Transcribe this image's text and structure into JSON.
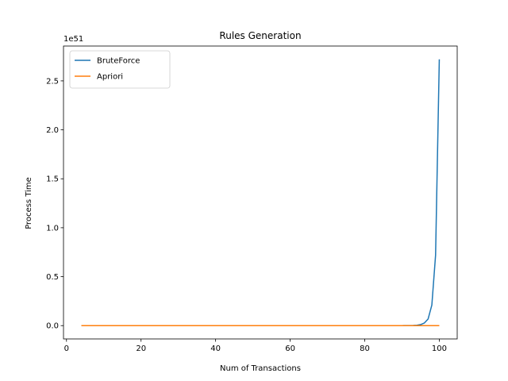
{
  "chart_data": {
    "type": "line",
    "title": "Rules Generation",
    "xlabel": "Num of Transactions",
    "ylabel": "Process Time",
    "offset_text": "1e51",
    "xlim": [
      -0.8,
      104.8
    ],
    "ylim": [
      -0.136,
      2.856
    ],
    "xticks": [
      0,
      20,
      40,
      60,
      80,
      100
    ],
    "yticks": [
      0.0,
      0.5,
      1.0,
      1.5,
      2.0,
      2.5
    ],
    "ytick_labels": [
      "0.0",
      "0.5",
      "1.0",
      "1.5",
      "2.0",
      "2.5"
    ],
    "legend": {
      "position": "upper-left"
    },
    "grid": false,
    "series": [
      {
        "name": "BruteForce",
        "color": "#1f77b4",
        "x": [
          4,
          10,
          20,
          30,
          40,
          50,
          60,
          70,
          80,
          90,
          93,
          94,
          95,
          96,
          97,
          98,
          99,
          100
        ],
        "y": [
          0,
          0,
          0,
          0,
          0,
          0,
          0,
          0,
          0,
          0.0003,
          0.0017,
          0.0042,
          0.0106,
          0.027,
          0.068,
          0.21,
          0.72,
          2.72
        ]
      },
      {
        "name": "Apriori",
        "color": "#ff7f0e",
        "x": [
          4,
          10,
          20,
          30,
          40,
          50,
          60,
          70,
          80,
          90,
          100
        ],
        "y": [
          0,
          0,
          0,
          0,
          0,
          0,
          0,
          0,
          0,
          0,
          0
        ]
      }
    ]
  }
}
